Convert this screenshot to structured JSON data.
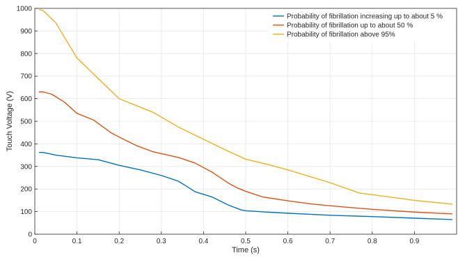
{
  "chart_data": {
    "type": "line",
    "xlabel": "Time (s)",
    "ylabel": "Touch Voltage (V)",
    "xlim": [
      0,
      1
    ],
    "ylim": [
      0,
      1000
    ],
    "x_ticks": [
      0,
      0.1,
      0.2,
      0.3,
      0.4,
      0.5,
      0.6,
      0.7,
      0.8,
      0.9
    ],
    "y_ticks": [
      0,
      100,
      200,
      300,
      400,
      500,
      600,
      700,
      800,
      900,
      1000
    ],
    "x_tick_labels": [
      "0",
      "0.1",
      "0.2",
      "0.3",
      "0.4",
      "0.5",
      "0.6",
      "0.7",
      "0.8",
      "0.9"
    ],
    "y_tick_labels": [
      "0",
      "100",
      "200",
      "300",
      "400",
      "500",
      "600",
      "700",
      "800",
      "900",
      "1000"
    ],
    "grid": true,
    "legend_position": "top-right",
    "series": [
      {
        "name": "Probability of fibrillation increasing up to about 5 %",
        "color": "#0072BD",
        "x": [
          0.01,
          0.02,
          0.05,
          0.1,
          0.15,
          0.2,
          0.25,
          0.3,
          0.34,
          0.36,
          0.38,
          0.42,
          0.46,
          0.49,
          0.5,
          0.55,
          0.6,
          0.7,
          0.8,
          0.9,
          0.99
        ],
        "y": [
          362,
          362,
          350,
          338,
          330,
          305,
          285,
          260,
          235,
          212,
          188,
          165,
          128,
          107,
          104,
          98,
          93,
          84,
          78,
          71,
          65
        ]
      },
      {
        "name": "Probability of fibrillation up to about 50 %",
        "color": "#D95319",
        "x": [
          0.01,
          0.02,
          0.04,
          0.07,
          0.1,
          0.14,
          0.18,
          0.2,
          0.24,
          0.28,
          0.34,
          0.38,
          0.42,
          0.46,
          0.48,
          0.5,
          0.54,
          0.6,
          0.66,
          0.7,
          0.8,
          0.9,
          0.99
        ],
        "y": [
          630,
          630,
          620,
          585,
          535,
          505,
          450,
          430,
          393,
          365,
          340,
          315,
          275,
          225,
          205,
          190,
          165,
          148,
          133,
          126,
          110,
          98,
          90
        ]
      },
      {
        "name": "Probability of fibrillation above 95%",
        "color": "#EDB120",
        "x": [
          0.01,
          0.02,
          0.05,
          0.1,
          0.15,
          0.2,
          0.24,
          0.28,
          0.34,
          0.4,
          0.45,
          0.5,
          0.55,
          0.6,
          0.7,
          0.77,
          0.8,
          0.9,
          0.99
        ],
        "y": [
          995,
          990,
          935,
          780,
          690,
          600,
          570,
          540,
          475,
          420,
          375,
          332,
          310,
          285,
          228,
          182,
          175,
          150,
          133
        ]
      }
    ]
  }
}
